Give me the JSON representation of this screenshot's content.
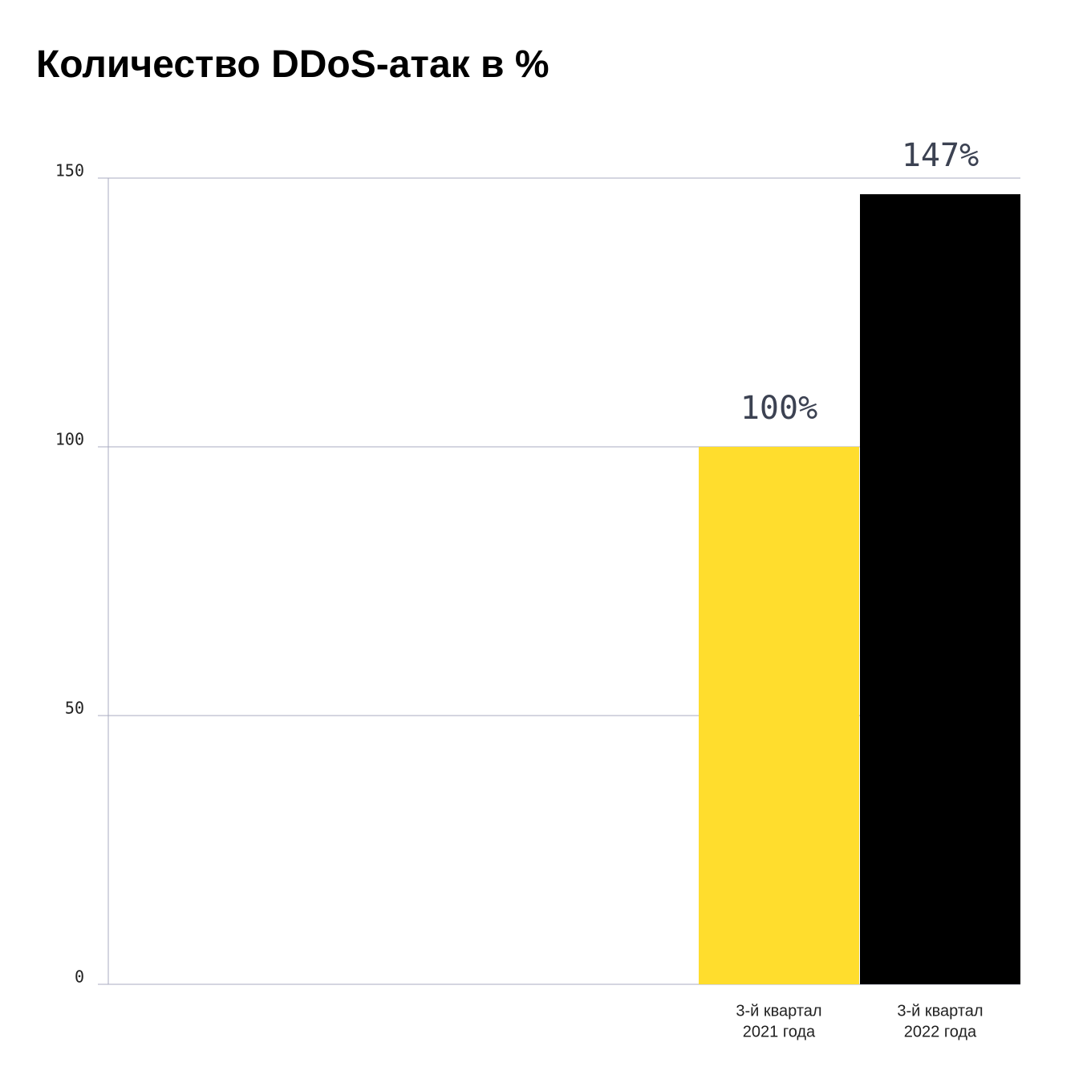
{
  "chart_data": {
    "type": "bar",
    "title": "Количество DDoS-атак в %",
    "categories": [
      [
        "3-й квартал",
        "2021 года"
      ],
      [
        "3-й квартал",
        "2022 года"
      ]
    ],
    "values": [
      100,
      147
    ],
    "value_labels": [
      "100%",
      "147%"
    ],
    "colors": [
      "#ffdd2d",
      "#000000"
    ],
    "ylim": [
      0,
      150
    ],
    "yticks": [
      0,
      50,
      100,
      150
    ],
    "grid": true
  }
}
